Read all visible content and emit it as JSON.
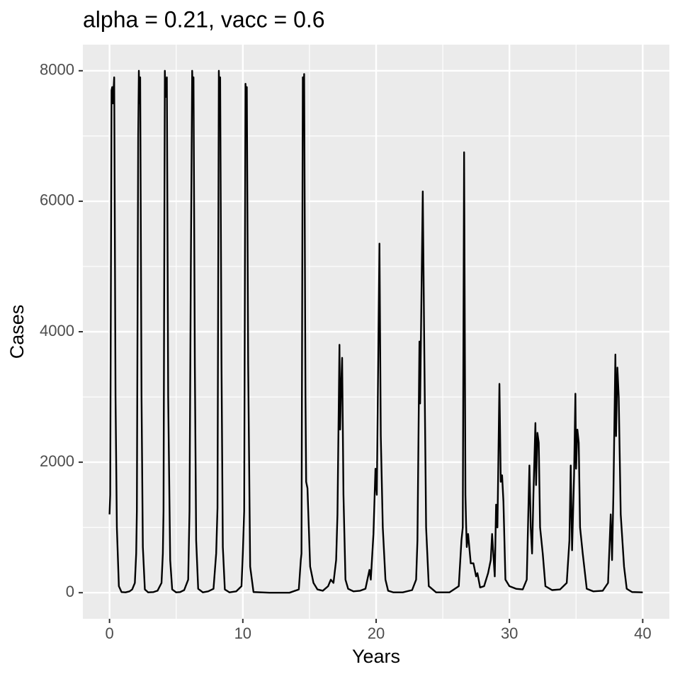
{
  "chart_data": {
    "type": "line",
    "title": "alpha = 0.21, vacc = 0.6",
    "x_label": "Years",
    "y_label": "Cases",
    "xlim": [
      -2,
      42
    ],
    "ylim": [
      -400,
      8400
    ],
    "xticks": [
      0,
      10,
      20,
      30,
      40
    ],
    "yticks": [
      0,
      2000,
      4000,
      6000,
      8000
    ],
    "grid": true,
    "minor_grid": true,
    "x": [
      0,
      0.05,
      0.15,
      0.2,
      0.25,
      0.35,
      0.45,
      0.55,
      0.7,
      0.9,
      1.2,
      1.5,
      1.7,
      1.9,
      2.0,
      2.05,
      2.15,
      2.2,
      2.25,
      2.3,
      2.4,
      2.5,
      2.65,
      2.9,
      3.3,
      3.6,
      3.9,
      4.0,
      4.05,
      4.15,
      4.2,
      4.3,
      4.4,
      4.55,
      4.7,
      5.0,
      5.3,
      5.6,
      5.9,
      6.0,
      6.1,
      6.2,
      6.25,
      6.3,
      6.4,
      6.5,
      6.65,
      7.0,
      7.4,
      7.8,
      8.0,
      8.1,
      8.2,
      8.25,
      8.3,
      8.4,
      8.5,
      8.65,
      9.0,
      9.5,
      9.9,
      10.0,
      10.1,
      10.2,
      10.25,
      10.3,
      10.4,
      10.55,
      10.8,
      12,
      13.5,
      14.2,
      14.35,
      14.4,
      14.5,
      14.55,
      14.6,
      14.7,
      14.75,
      14.85,
      14.95,
      15.05,
      15.3,
      15.6,
      16,
      16.4,
      16.6,
      16.8,
      17.0,
      17.1,
      17.25,
      17.3,
      17.35,
      17.45,
      17.55,
      17.7,
      17.9,
      18.3,
      18.8,
      19.2,
      19.5,
      19.6,
      19.8,
      19.95,
      20.05,
      20.25,
      20.35,
      20.5,
      20.7,
      20.9,
      21.3,
      22,
      22.7,
      23.0,
      23.1,
      23.25,
      23.3,
      23.5,
      23.6,
      23.75,
      23.95,
      24.5,
      25.5,
      26.2,
      26.4,
      26.5,
      26.6,
      26.7,
      26.75,
      26.8,
      26.9,
      27.1,
      27.3,
      27.5,
      27.6,
      27.8,
      28.1,
      28.4,
      28.6,
      28.7,
      28.9,
      29.0,
      29.1,
      29.25,
      29.35,
      29.45,
      29.55,
      29.7,
      30.0,
      30.5,
      31.0,
      31.3,
      31.5,
      31.6,
      31.7,
      31.8,
      31.95,
      32.0,
      32.1,
      32.2,
      32.3,
      32.5,
      32.7,
      33.2,
      33.8,
      34.3,
      34.5,
      34.6,
      34.7,
      34.85,
      34.95,
      35.0,
      35.1,
      35.2,
      35.3,
      35.5,
      35.8,
      36.3,
      37.0,
      37.4,
      37.6,
      37.7,
      37.8,
      37.95,
      38.0,
      38.1,
      38.2,
      38.35,
      38.6,
      38.8,
      39.2,
      40
    ],
    "series": [
      {
        "color": "#000000",
        "values": [
          1200,
          1500,
          7700,
          7750,
          7500,
          7900,
          3000,
          1000,
          100,
          10,
          5,
          20,
          50,
          150,
          600,
          1250,
          7000,
          8000,
          7500,
          7900,
          3000,
          700,
          50,
          5,
          10,
          30,
          150,
          600,
          1250,
          8000,
          7600,
          7900,
          3000,
          500,
          50,
          5,
          10,
          40,
          200,
          1250,
          5000,
          8000,
          7600,
          7900,
          3500,
          800,
          60,
          5,
          20,
          60,
          600,
          1300,
          8000,
          7600,
          7900,
          3500,
          700,
          50,
          5,
          20,
          100,
          600,
          1250,
          7800,
          7500,
          7750,
          3500,
          400,
          10,
          0,
          0,
          50,
          500,
          600,
          7900,
          7500,
          7950,
          3000,
          1700,
          1600,
          1000,
          400,
          150,
          50,
          30,
          100,
          200,
          150,
          500,
          1200,
          3800,
          2500,
          3000,
          3600,
          1500,
          200,
          60,
          20,
          30,
          60,
          350,
          200,
          900,
          1900,
          1500,
          5350,
          2400,
          1000,
          200,
          30,
          5,
          5,
          40,
          200,
          800,
          3850,
          2900,
          6150,
          4000,
          1000,
          100,
          5,
          5,
          100,
          800,
          1000,
          6750,
          1500,
          1050,
          700,
          900,
          450,
          450,
          250,
          300,
          80,
          100,
          300,
          500,
          900,
          250,
          1350,
          1000,
          3200,
          1700,
          1800,
          1400,
          200,
          100,
          60,
          50,
          200,
          1950,
          1000,
          600,
          1500,
          2600,
          1650,
          2450,
          2300,
          1000,
          600,
          100,
          40,
          50,
          150,
          800,
          1950,
          650,
          1800,
          3050,
          1900,
          2500,
          2300,
          1000,
          600,
          60,
          20,
          30,
          150,
          1200,
          500,
          1500,
          3650,
          2400,
          3450,
          3000,
          1200,
          400,
          60,
          10,
          5
        ]
      }
    ]
  }
}
